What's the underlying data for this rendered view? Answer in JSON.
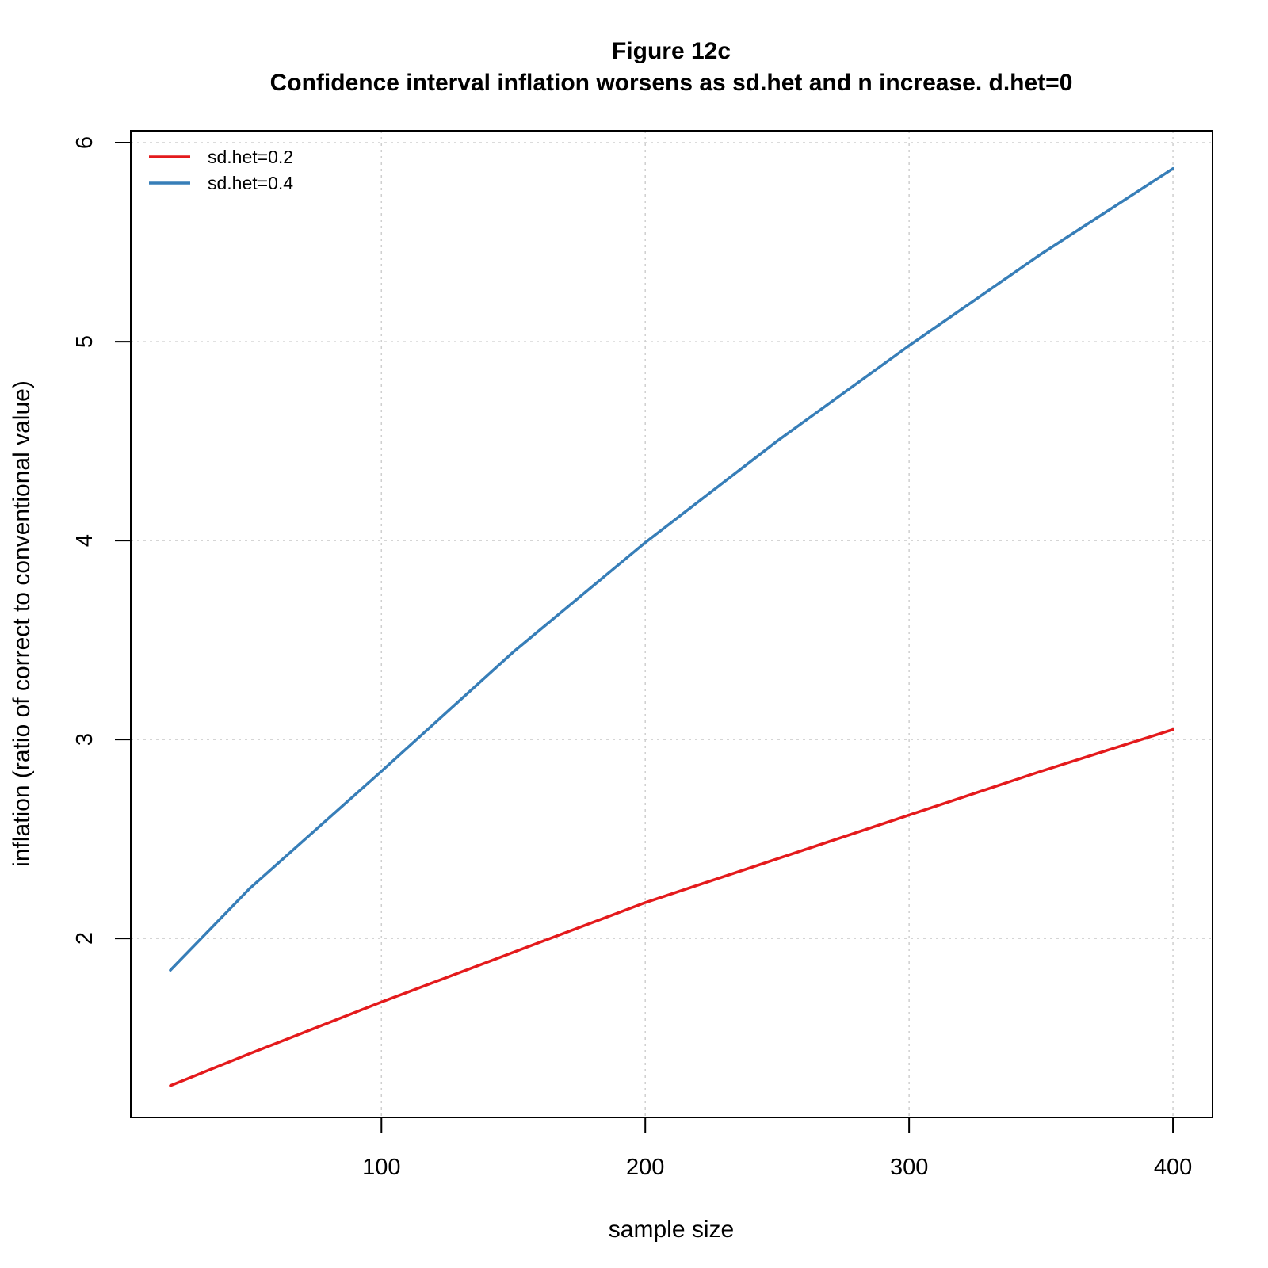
{
  "chart_data": {
    "type": "line",
    "title": "Figure 12c",
    "subtitle": "Confidence interval inflation worsens as sd.het and n increase. d.het=0",
    "xlabel": "sample size",
    "ylabel": "inflation (ratio of correct to conventional value)",
    "xlim": [
      5,
      415
    ],
    "ylim": [
      1.1,
      6.06
    ],
    "xticks": [
      100,
      200,
      300,
      400
    ],
    "yticks": [
      2,
      3,
      4,
      5,
      6
    ],
    "grid": true,
    "legend_position": "top-left",
    "x": [
      20,
      50,
      100,
      150,
      200,
      250,
      300,
      350,
      400
    ],
    "series": [
      {
        "name": "sd.het=0.2",
        "color": "#e41a1c",
        "values": [
          1.26,
          1.42,
          1.68,
          1.93,
          2.18,
          2.4,
          2.62,
          2.84,
          3.05
        ]
      },
      {
        "name": "sd.het=0.4",
        "color": "#377eb8",
        "values": [
          1.84,
          2.25,
          2.84,
          3.44,
          3.99,
          4.5,
          4.98,
          5.44,
          5.87
        ]
      }
    ]
  }
}
